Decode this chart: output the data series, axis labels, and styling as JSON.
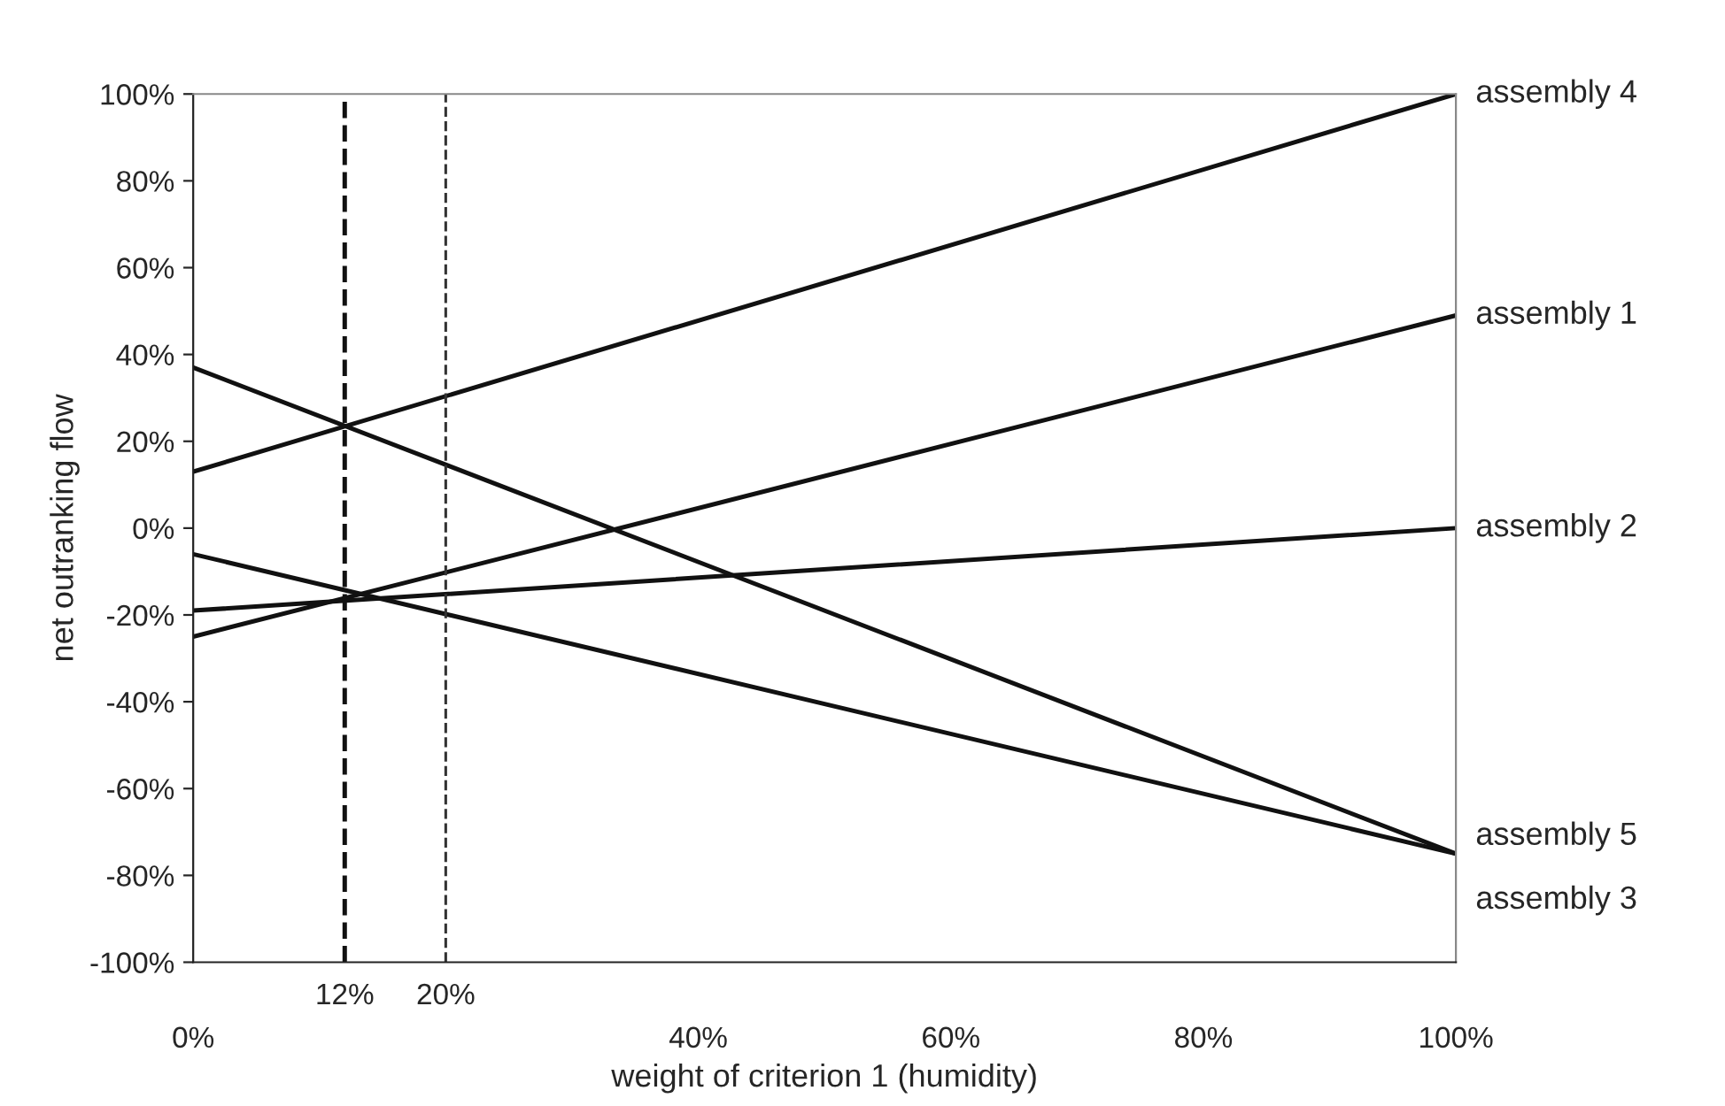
{
  "chart_data": {
    "type": "line",
    "xlabel": "weight of criterion 1 (humidity)",
    "ylabel": "net outranking flow",
    "x": [
      0,
      100
    ],
    "series": [
      {
        "name": "assembly 4",
        "color": "#111111",
        "values": [
          13,
          100
        ]
      },
      {
        "name": "assembly 1",
        "color": "#111111",
        "values": [
          -25,
          49
        ]
      },
      {
        "name": "assembly 2",
        "color": "#111111",
        "values": [
          -19,
          0
        ]
      },
      {
        "name": "assembly 5",
        "color": "#111111",
        "values": [
          37,
          -75
        ]
      },
      {
        "name": "assembly 3",
        "color": "#111111",
        "values": [
          -6,
          -75
        ]
      }
    ],
    "xlim": [
      0,
      100
    ],
    "ylim": [
      -100,
      100
    ],
    "xticks": [
      {
        "value": 0,
        "label": "0%"
      },
      {
        "value": 20,
        "label": null
      },
      {
        "value": 40,
        "label": "40%"
      },
      {
        "value": 60,
        "label": "60%"
      },
      {
        "value": 80,
        "label": "80%"
      },
      {
        "value": 100,
        "label": "100%"
      }
    ],
    "yticks": [
      {
        "value": -100,
        "label": "-100%"
      },
      {
        "value": -80,
        "label": "-80%"
      },
      {
        "value": -60,
        "label": "-60%"
      },
      {
        "value": -40,
        "label": "-40%"
      },
      {
        "value": -20,
        "label": "-20%"
      },
      {
        "value": 0,
        "label": "0%"
      },
      {
        "value": 20,
        "label": "20%"
      },
      {
        "value": 40,
        "label": "40%"
      },
      {
        "value": 60,
        "label": "60%"
      },
      {
        "value": 80,
        "label": "80%"
      },
      {
        "value": 100,
        "label": "100%"
      }
    ],
    "ref_lines": [
      {
        "axis": "x",
        "value": 12,
        "label": "12%",
        "color": "#111111",
        "line_style": "dashed"
      },
      {
        "axis": "x",
        "value": 20,
        "label": "20%",
        "color": "#333333",
        "line_style": "dashed"
      }
    ],
    "grid": false,
    "legend": false,
    "marker": "none",
    "line_style": "solid"
  }
}
